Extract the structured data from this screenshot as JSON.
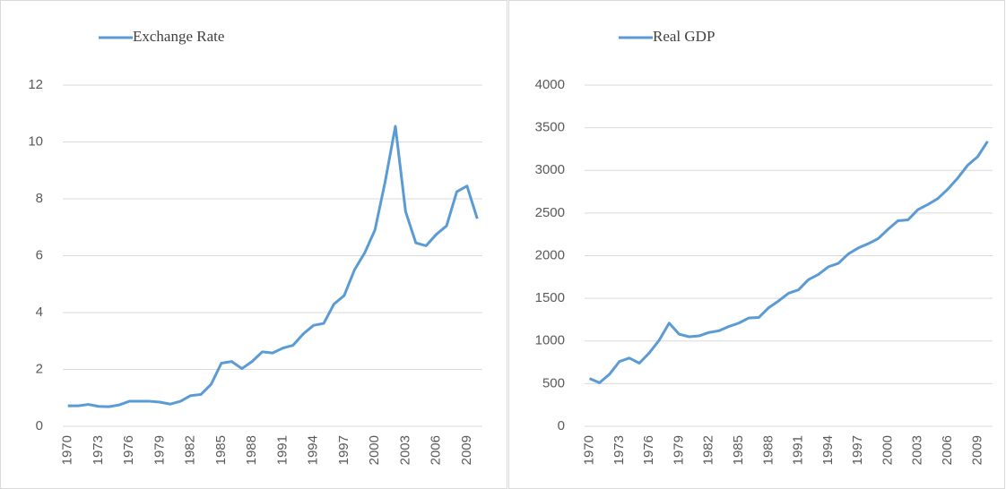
{
  "chart_data": [
    {
      "type": "line",
      "categories": [
        "1970",
        null,
        null,
        "1973",
        null,
        null,
        "1976",
        null,
        null,
        "1979",
        null,
        null,
        "1982",
        null,
        null,
        "1985",
        null,
        null,
        "1988",
        null,
        null,
        "1991",
        null,
        null,
        "1994",
        null,
        null,
        "1997",
        null,
        null,
        "2000",
        null,
        null,
        "2003",
        null,
        null,
        "2006",
        null,
        null,
        "2009",
        null
      ],
      "series": [
        {
          "name": "Exchange Rate",
          "color": "#5b9bd5",
          "values": [
            0.72,
            0.72,
            0.77,
            0.7,
            0.69,
            0.75,
            0.88,
            0.88,
            0.88,
            0.85,
            0.78,
            0.88,
            1.08,
            1.12,
            1.48,
            2.22,
            2.28,
            2.03,
            2.28,
            2.62,
            2.58,
            2.75,
            2.85,
            3.25,
            3.55,
            3.62,
            4.3,
            4.6,
            5.5,
            6.1,
            6.9,
            8.6,
            10.55,
            7.55,
            6.45,
            6.35,
            6.75,
            7.05,
            8.25,
            8.45,
            7.3
          ]
        }
      ],
      "ylim": [
        0,
        12
      ],
      "yticks": [
        0,
        2,
        4,
        6,
        8,
        10,
        12
      ],
      "grid": true,
      "legend": "top"
    },
    {
      "type": "line",
      "categories": [
        "1970",
        null,
        null,
        "1973",
        null,
        null,
        "1976",
        null,
        null,
        "1979",
        null,
        null,
        "1982",
        null,
        null,
        "1985",
        null,
        null,
        "1988",
        null,
        null,
        "1991",
        null,
        null,
        "1994",
        null,
        null,
        "1997",
        null,
        null,
        "2000",
        null,
        null,
        "2003",
        null,
        null,
        "2006",
        null,
        null,
        "2009",
        null
      ],
      "series": [
        {
          "name": "Real GDP",
          "color": "#5b9bd5",
          "values": [
            560,
            510,
            610,
            760,
            800,
            740,
            860,
            1010,
            1210,
            1080,
            1050,
            1060,
            1100,
            1120,
            1170,
            1210,
            1270,
            1275,
            1390,
            1470,
            1560,
            1600,
            1720,
            1780,
            1870,
            1910,
            2020,
            2090,
            2140,
            2200,
            2310,
            2410,
            2420,
            2540,
            2600,
            2670,
            2780,
            2910,
            3060,
            3160,
            3340
          ]
        }
      ],
      "ylim": [
        0,
        4000
      ],
      "yticks": [
        0,
        500,
        1000,
        1500,
        2000,
        2500,
        3000,
        3500,
        4000
      ],
      "grid": true,
      "legend": "top"
    }
  ]
}
